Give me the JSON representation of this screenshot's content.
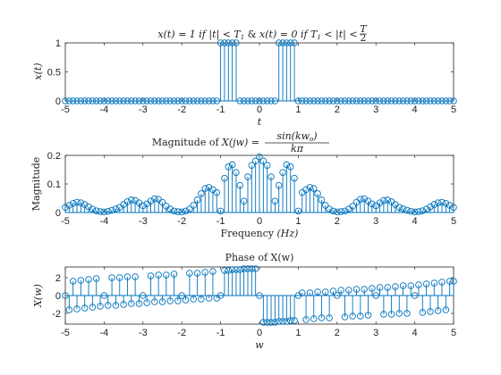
{
  "colors": {
    "stem": "#0072BD",
    "axis": "#262626",
    "text": "#222222",
    "background": "#ffffff"
  },
  "chart_data": [
    {
      "type": "stem",
      "title": "x(t) = 1 if |t| < T1 & x(t) = 0 if T1 < |t| < T/2",
      "title_parts": {
        "a": "x(t) = 1 if |t| < T",
        "a_sub": "1",
        "b": " & ",
        "c": "x(t) = 0 if T",
        "c_sub": "1",
        "d": " < |t| < ",
        "frac_num": "T",
        "frac_den": "2"
      },
      "xlabel": "t",
      "ylabel": "x(t)",
      "xlim": [
        -5,
        5
      ],
      "ylim": [
        0,
        1
      ],
      "xticks": [
        "-5",
        "-4",
        "-3",
        "-2",
        "-1",
        "0",
        "1",
        "2",
        "3",
        "4",
        "5"
      ],
      "yticks": [
        "0",
        "0.5",
        "1"
      ],
      "x": [
        -5,
        -4.9,
        -4.8,
        -4.7,
        -4.6,
        -4.5,
        -4.4,
        -4.3,
        -4.2,
        -4.1,
        -4,
        -3.9,
        -3.8,
        -3.7,
        -3.6,
        -3.5,
        -3.4,
        -3.3,
        -3.2,
        -3.1,
        -3,
        -2.9,
        -2.8,
        -2.7,
        -2.6,
        -2.5,
        -2.4,
        -2.3,
        -2.2,
        -2.1,
        -2,
        -1.9,
        -1.8,
        -1.7,
        -1.6,
        -1.5,
        -1.4,
        -1.3,
        -1.2,
        -1.1,
        -1,
        -0.9,
        -0.8,
        -0.7,
        -0.6,
        -0.5,
        -0.4,
        -0.3,
        -0.2,
        -0.1,
        0,
        0.1,
        0.2,
        0.3,
        0.4,
        0.5,
        0.6,
        0.7,
        0.8,
        0.9,
        1,
        1.1,
        1.2,
        1.3,
        1.4,
        1.5,
        1.6,
        1.7,
        1.8,
        1.9,
        2,
        2.1,
        2.2,
        2.3,
        2.4,
        2.5,
        2.6,
        2.7,
        2.8,
        2.9,
        3,
        3.1,
        3.2,
        3.3,
        3.4,
        3.5,
        3.6,
        3.7,
        3.8,
        3.9,
        4,
        4.1,
        4.2,
        4.3,
        4.4,
        4.5,
        4.6,
        4.7,
        4.8,
        4.9,
        5
      ],
      "y": [
        0,
        0,
        0,
        0,
        0,
        0,
        0,
        0,
        0,
        0,
        0,
        0,
        0,
        0,
        0,
        0,
        0,
        0,
        0,
        0,
        0,
        0,
        0,
        0,
        0,
        0,
        0,
        0,
        0,
        0,
        0,
        0,
        0,
        0,
        0,
        0,
        0,
        0,
        0,
        0,
        1,
        1,
        1,
        1,
        1,
        0,
        0,
        0,
        0,
        0,
        0,
        0,
        0,
        0,
        0,
        1,
        1,
        1,
        1,
        1,
        0,
        0,
        0,
        0,
        0,
        0,
        0,
        0,
        0,
        0,
        0,
        0,
        0,
        0,
        0,
        0,
        0,
        0,
        0,
        0,
        0,
        0,
        0,
        0,
        0,
        0,
        0,
        0,
        0,
        0,
        0,
        0,
        0,
        0,
        0,
        0,
        0,
        0,
        0,
        0,
        0
      ]
    },
    {
      "type": "stem",
      "title": "Magnitude of X(jw) = sin(kwo)/kπ",
      "title_parts": {
        "prefix": "Magnitude of ",
        "lhs": "X(jw) = ",
        "num": "sin(kw",
        "num_sub": "o",
        "num_end": ")",
        "den": "kπ"
      },
      "xlabel": "Frequency (Hz)",
      "xlabel_parts": {
        "word": "Frequency",
        "unit": "(Hz)"
      },
      "ylabel": "Magnitude",
      "xlim": [
        -5,
        5
      ],
      "ylim": [
        0,
        0.2
      ],
      "xticks": [
        "-5",
        "-4",
        "-3",
        "-2",
        "-1",
        "0",
        "1",
        "2",
        "3",
        "4",
        "5"
      ],
      "yticks": [
        "0",
        "0.1",
        "0.2"
      ],
      "x": [
        -5,
        -4.9,
        -4.8,
        -4.7,
        -4.6,
        -4.5,
        -4.4,
        -4.3,
        -4.2,
        -4.1,
        -4,
        -3.9,
        -3.8,
        -3.7,
        -3.6,
        -3.5,
        -3.4,
        -3.3,
        -3.2,
        -3.1,
        -3,
        -2.9,
        -2.8,
        -2.7,
        -2.6,
        -2.5,
        -2.4,
        -2.3,
        -2.2,
        -2.1,
        -2,
        -1.9,
        -1.8,
        -1.7,
        -1.6,
        -1.5,
        -1.4,
        -1.3,
        -1.2,
        -1.1,
        -1,
        -0.9,
        -0.8,
        -0.7,
        -0.6,
        -0.5,
        -0.4,
        -0.3,
        -0.2,
        -0.1,
        0,
        0.1,
        0.2,
        0.3,
        0.4,
        0.5,
        0.6,
        0.7,
        0.8,
        0.9,
        1,
        1.1,
        1.2,
        1.3,
        1.4,
        1.5,
        1.6,
        1.7,
        1.8,
        1.9,
        2,
        2.1,
        2.2,
        2.3,
        2.4,
        2.5,
        2.6,
        2.7,
        2.8,
        2.9,
        3,
        3.1,
        3.2,
        3.3,
        3.4,
        3.5,
        3.6,
        3.7,
        3.8,
        3.9,
        4,
        4.1,
        4.2,
        4.3,
        4.4,
        4.5,
        4.6,
        4.7,
        4.8,
        4.9,
        5
      ],
      "y": [
        0.018,
        0.025,
        0.032,
        0.036,
        0.034,
        0.028,
        0.02,
        0.012,
        0.006,
        0.003,
        0.002,
        0.004,
        0.008,
        0.013,
        0.018,
        0.028,
        0.038,
        0.044,
        0.042,
        0.034,
        0.024,
        0.03,
        0.04,
        0.048,
        0.046,
        0.036,
        0.022,
        0.012,
        0.005,
        0.003,
        0.002,
        0.005,
        0.012,
        0.025,
        0.044,
        0.066,
        0.084,
        0.088,
        0.08,
        0.07,
        0.005,
        0.12,
        0.16,
        0.167,
        0.14,
        0.095,
        0.04,
        0.125,
        0.165,
        0.18,
        0.195,
        0.18,
        0.165,
        0.125,
        0.04,
        0.095,
        0.14,
        0.167,
        0.16,
        0.12,
        0.005,
        0.07,
        0.08,
        0.088,
        0.084,
        0.066,
        0.044,
        0.025,
        0.012,
        0.005,
        0.002,
        0.003,
        0.005,
        0.012,
        0.022,
        0.036,
        0.046,
        0.048,
        0.04,
        0.03,
        0.024,
        0.034,
        0.042,
        0.044,
        0.038,
        0.028,
        0.018,
        0.013,
        0.008,
        0.004,
        0.002,
        0.003,
        0.006,
        0.012,
        0.02,
        0.028,
        0.034,
        0.036,
        0.032,
        0.025,
        0.018
      ]
    },
    {
      "type": "stem",
      "title": "Phase of X(w)",
      "xlabel": "w",
      "ylabel": "X(w)",
      "xlim": [
        -5,
        5
      ],
      "ylim": [
        -3.2,
        3.2
      ],
      "xticks": [
        "-5",
        "-4",
        "-3",
        "-2",
        "-1",
        "0",
        "1",
        "2",
        "3",
        "4",
        "5"
      ],
      "yticks": [
        "-2",
        "0",
        "2"
      ],
      "x": [
        -5,
        -4.9,
        -4.8,
        -4.7,
        -4.6,
        -4.5,
        -4.4,
        -4.3,
        -4.2,
        -4.1,
        -4,
        -3.9,
        -3.8,
        -3.7,
        -3.6,
        -3.5,
        -3.4,
        -3.3,
        -3.2,
        -3.1,
        -3,
        -2.9,
        -2.8,
        -2.7,
        -2.6,
        -2.5,
        -2.4,
        -2.3,
        -2.2,
        -2.1,
        -2,
        -1.9,
        -1.8,
        -1.7,
        -1.6,
        -1.5,
        -1.4,
        -1.3,
        -1.2,
        -1.1,
        -1,
        -0.9,
        -0.8,
        -0.7,
        -0.6,
        -0.5,
        -0.4,
        -0.3,
        -0.2,
        -0.1,
        0,
        0.1,
        0.2,
        0.3,
        0.4,
        0.5,
        0.6,
        0.7,
        0.8,
        0.9,
        1,
        1.1,
        1.2,
        1.3,
        1.4,
        1.5,
        1.6,
        1.7,
        1.8,
        1.9,
        2,
        2.1,
        2.2,
        2.3,
        2.4,
        2.5,
        2.6,
        2.7,
        2.8,
        2.9,
        3,
        3.1,
        3.2,
        3.3,
        3.4,
        3.5,
        3.6,
        3.7,
        3.8,
        3.9,
        4,
        4.1,
        4.2,
        4.3,
        4.4,
        4.5,
        4.6,
        4.7,
        4.8,
        4.9,
        5
      ],
      "y": [
        0.0,
        -1.6,
        1.6,
        -1.5,
        1.7,
        -1.4,
        1.8,
        -1.3,
        1.9,
        -1.2,
        0.0,
        -1.1,
        2.0,
        -1.1,
        2.0,
        -1.0,
        2.1,
        -0.9,
        2.1,
        -0.9,
        0.0,
        -0.8,
        2.2,
        -0.7,
        2.3,
        -0.7,
        2.3,
        -0.6,
        2.4,
        -0.6,
        0.0,
        -0.5,
        2.5,
        -0.4,
        2.5,
        -0.4,
        2.6,
        -0.3,
        2.7,
        -0.3,
        0.0,
        2.8,
        2.8,
        2.9,
        2.9,
        2.9,
        3.0,
        3.0,
        3.0,
        3.0,
        0.0,
        -3.0,
        -3.0,
        -3.0,
        -3.0,
        -2.9,
        -2.9,
        -2.9,
        -2.8,
        -2.8,
        0.0,
        0.3,
        -2.7,
        0.3,
        -2.6,
        0.4,
        -2.5,
        0.4,
        -2.5,
        0.5,
        0.0,
        0.6,
        -2.4,
        0.6,
        -2.3,
        0.7,
        -2.3,
        0.7,
        -2.2,
        0.8,
        0.0,
        0.9,
        -2.1,
        0.9,
        -2.1,
        1.0,
        -2.0,
        1.1,
        -2.0,
        1.1,
        0.0,
        1.2,
        -1.9,
        1.3,
        -1.8,
        1.4,
        -1.7,
        1.5,
        -1.6,
        1.6,
        1.6
      ]
    }
  ]
}
